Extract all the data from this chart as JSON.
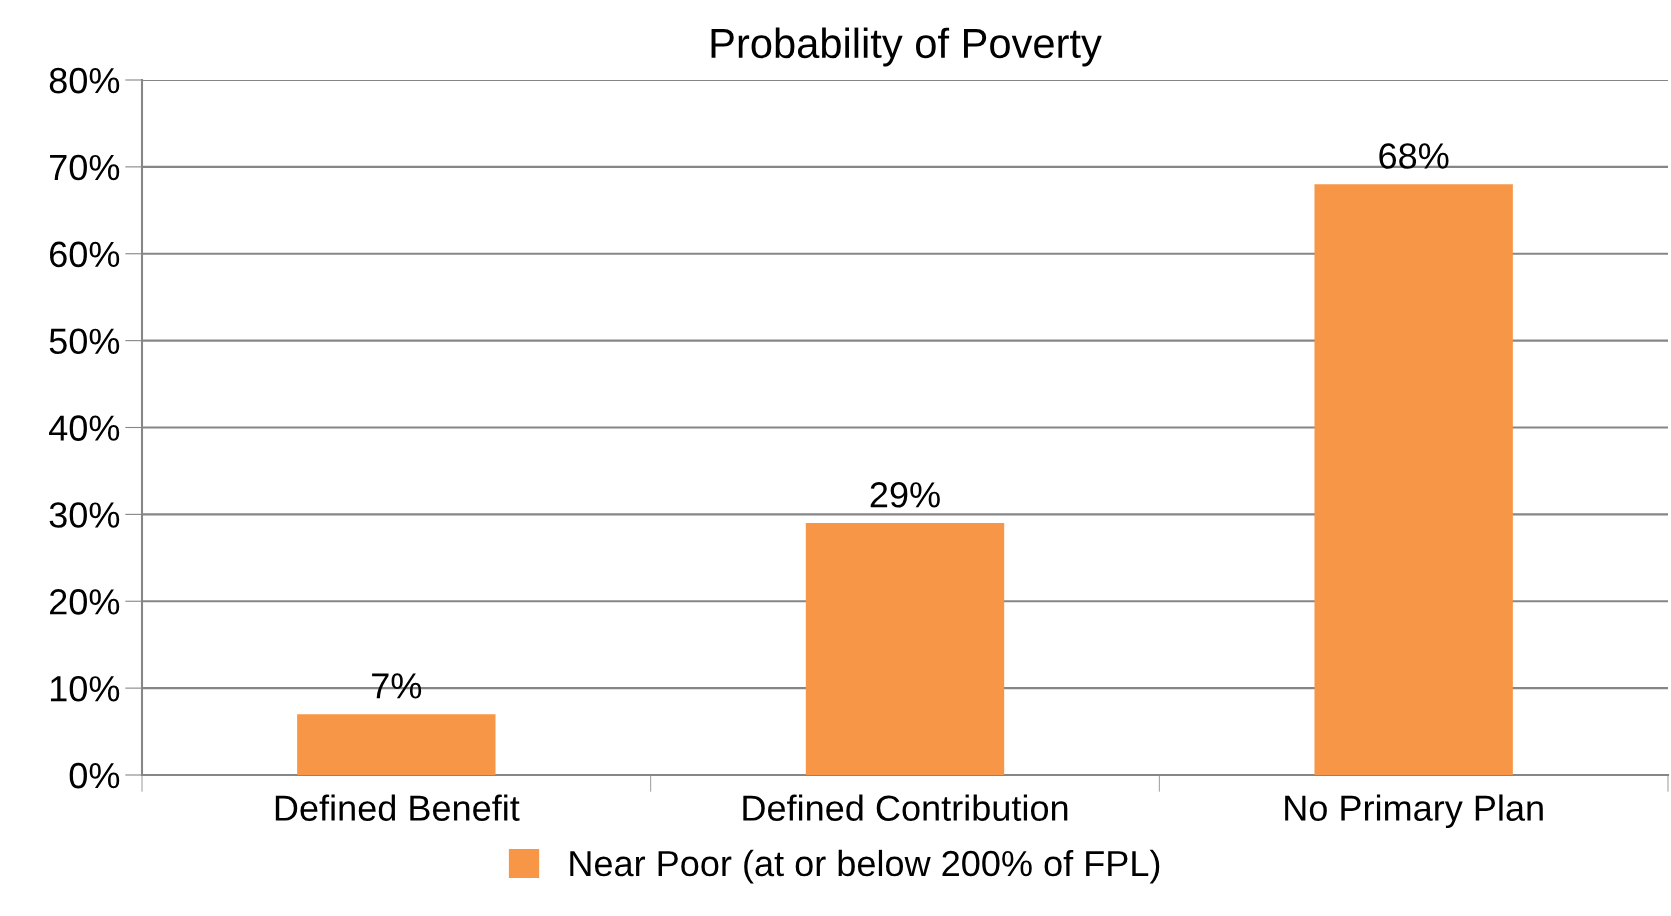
{
  "chart_data": {
    "type": "bar",
    "title": "Probability of Poverty",
    "categories": [
      "Defined Benefit",
      "Defined Contribution",
      "No Primary Plan"
    ],
    "series": [
      {
        "name": "Near Poor (at or below 200% of FPL)",
        "color": "#f79646",
        "values": [
          7,
          29,
          68
        ],
        "value_labels": [
          "7%",
          "29%",
          "68%"
        ]
      }
    ],
    "ylim": [
      0,
      80
    ],
    "yticks": [
      {
        "value": 0,
        "label": "0%"
      },
      {
        "value": 10,
        "label": "10%"
      },
      {
        "value": 20,
        "label": "20%"
      },
      {
        "value": 30,
        "label": "30%"
      },
      {
        "value": 40,
        "label": "40%"
      },
      {
        "value": 50,
        "label": "50%"
      },
      {
        "value": 60,
        "label": "60%"
      },
      {
        "value": 70,
        "label": "70%"
      },
      {
        "value": 80,
        "label": "80%"
      }
    ],
    "grid": "y",
    "legend": "bottom"
  }
}
